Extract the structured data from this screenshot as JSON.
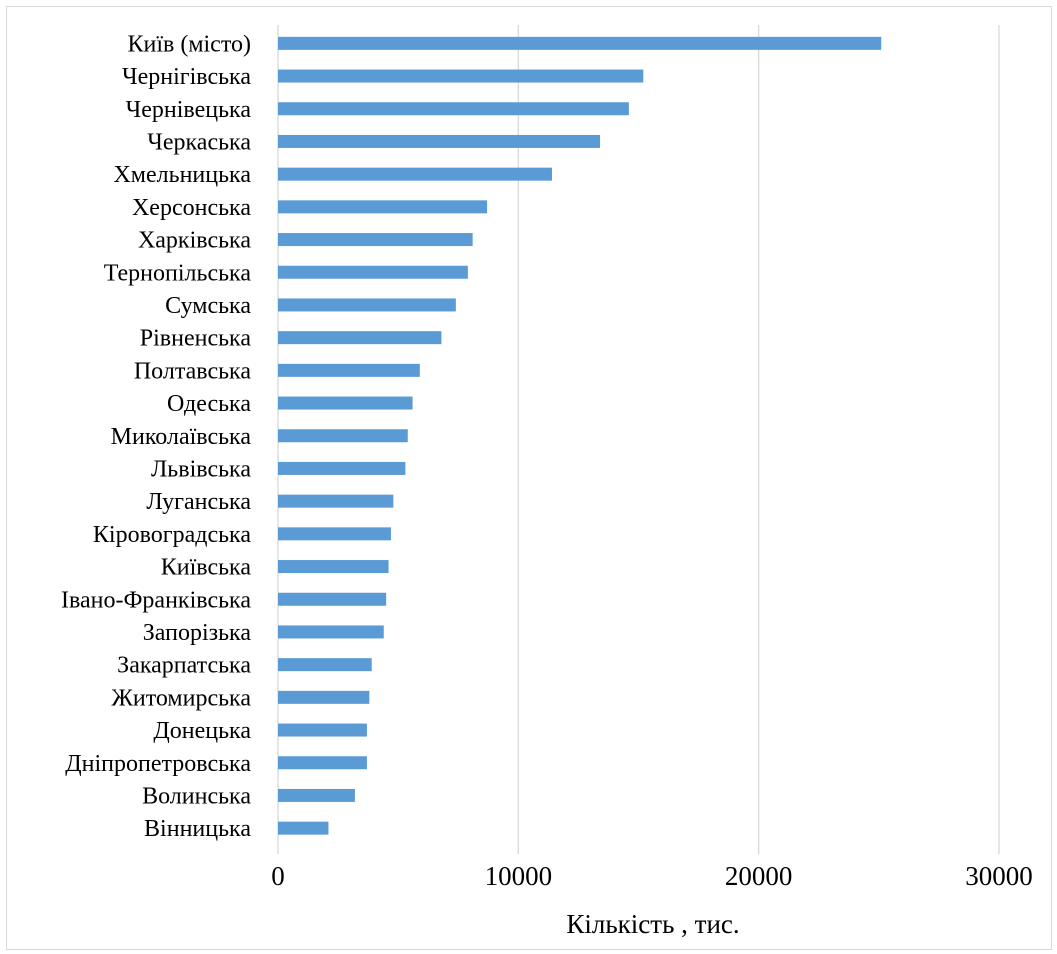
{
  "chart_data": {
    "type": "bar",
    "orientation": "horizontal",
    "categories": [
      "Київ (місто)",
      "Чернігівська",
      "Чернівецька",
      "Черкаська",
      "Хмельницька",
      "Херсонська",
      "Харківська",
      "Тернопільська",
      "Сумська",
      "Рівненська",
      "Полтавська",
      "Одеська",
      "Миколаївська",
      "Львівська",
      "Луганська",
      "Кіровоградська",
      "Київська",
      "Івано-Франківська",
      "Запорізька",
      "Закарпатська",
      "Житомирська",
      "Донецька",
      "Дніпропетровська",
      "Волинська",
      "Вінницька"
    ],
    "values": [
      25100,
      15200,
      14600,
      13400,
      11400,
      8700,
      8100,
      7900,
      7400,
      6800,
      5900,
      5600,
      5400,
      5300,
      4800,
      4700,
      4600,
      4500,
      4400,
      3900,
      3800,
      3700,
      3700,
      3200,
      2100
    ],
    "xlabel": "Кількість , тис.",
    "ylabel": "",
    "title": "",
    "xlim": [
      0,
      30000
    ],
    "xticks": [
      "0",
      "10000",
      "20000",
      "30000"
    ],
    "grid": "vertical",
    "legend": "none",
    "bar_color": "#5b9bd5",
    "gridline_color": "#d9d9d9"
  }
}
